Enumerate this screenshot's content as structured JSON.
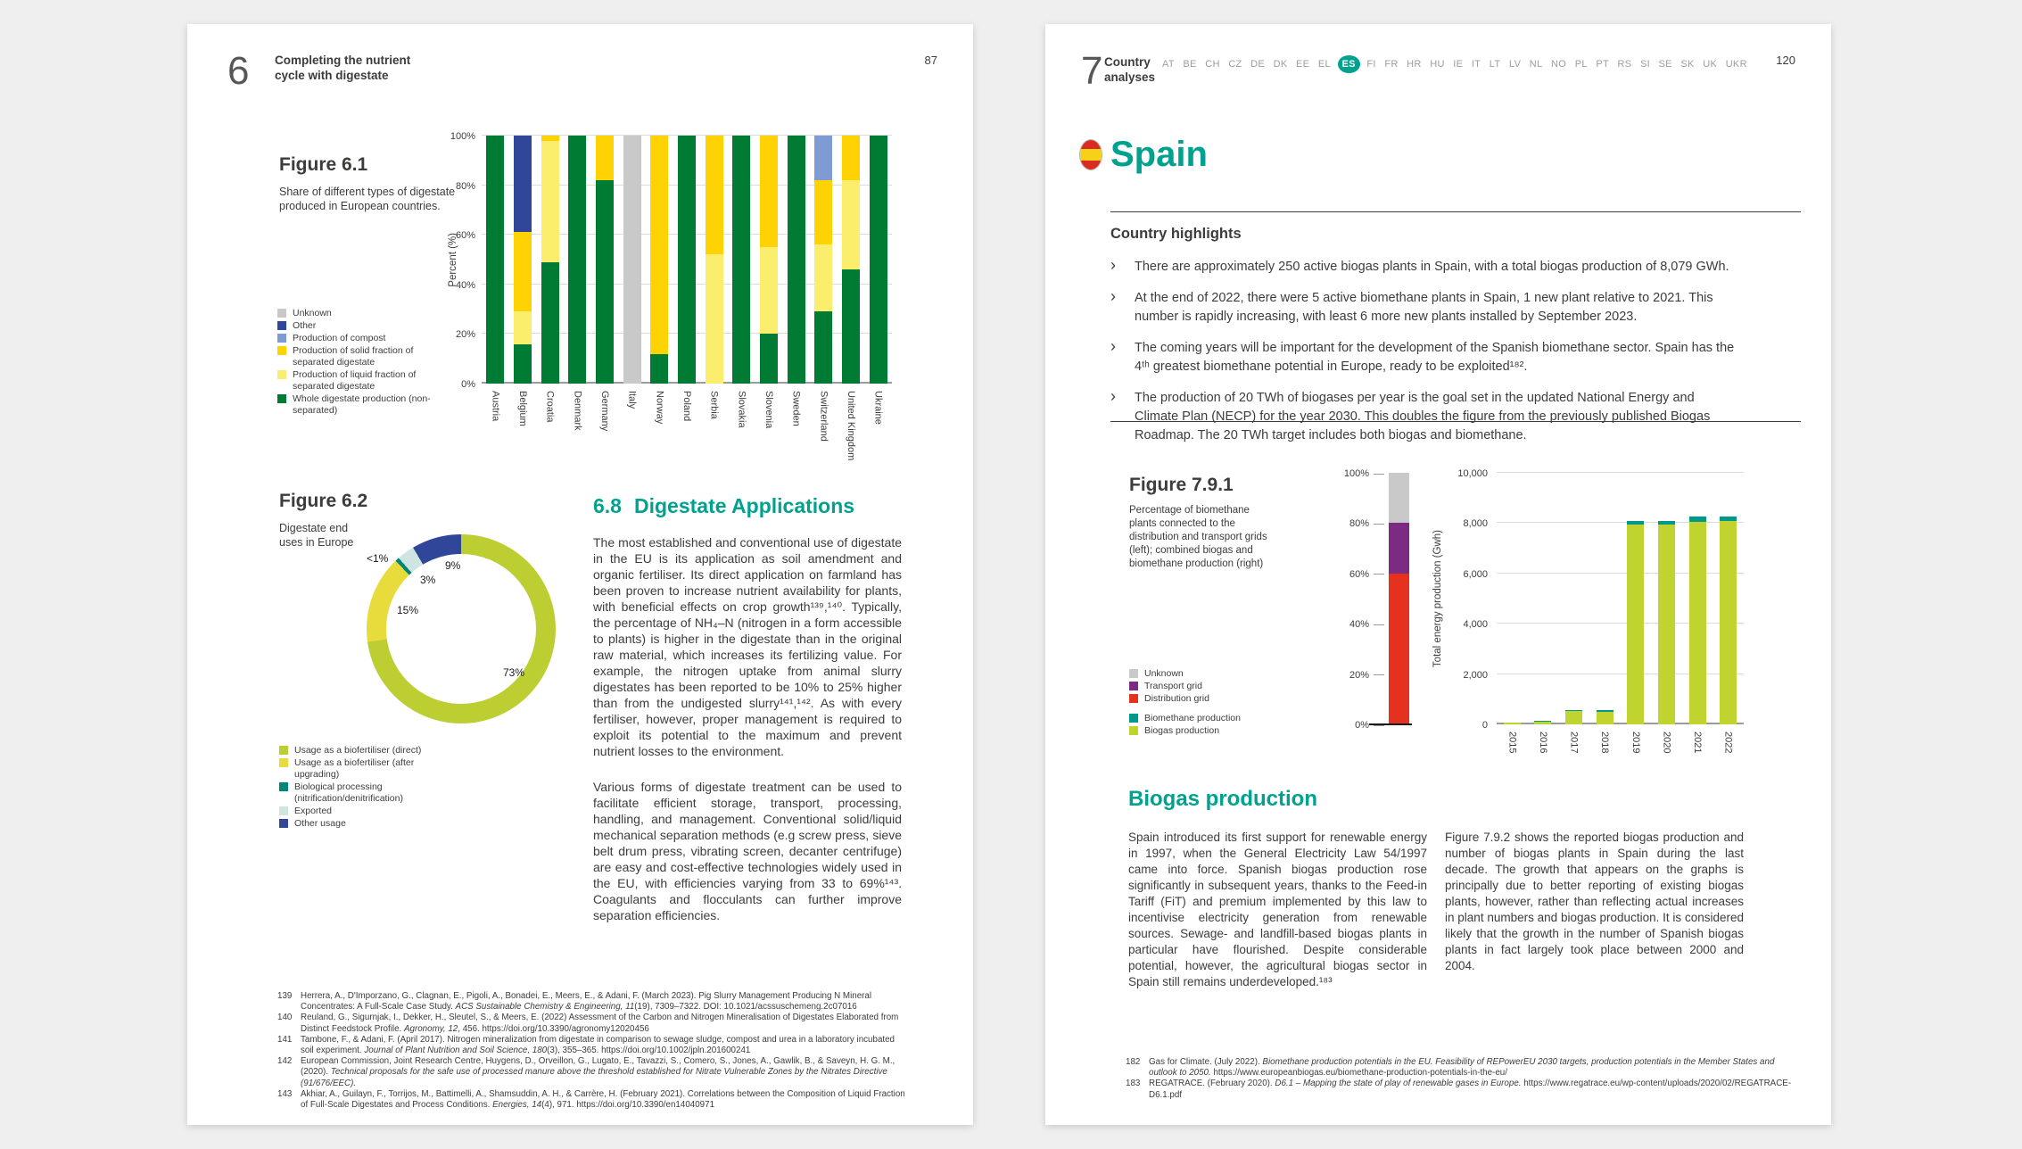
{
  "canvas": {
    "background": "#EFEFEF",
    "page_background": "#FFFFFF"
  },
  "accent": {
    "heading_teal": "#00A28F",
    "body_text": "#3C3C3B",
    "muted_gray": "#9D9D9C"
  },
  "left_page": {
    "chapter_num": "6",
    "chapter_title": "Completing the nutrient\ncycle with digestate",
    "page_num": "87",
    "fig61": {
      "title": "Figure 6.1",
      "caption": "Share of different types of digestate\nproduced in European countries.",
      "legend": [
        {
          "label": "Unknown",
          "color": "#C9C9C9"
        },
        {
          "label": "Other",
          "color": "#2F4699"
        },
        {
          "label": "Production of compost",
          "color": "#7E9BD3"
        },
        {
          "label": "Production of solid fraction of separated digestate",
          "color": "#FFD203"
        },
        {
          "label": "Production of liquid fraction of separated digestate",
          "color": "#FCEE6D"
        },
        {
          "label": "Whole digestate production (non-separated)",
          "color": "#007B33"
        }
      ]
    },
    "fig62": {
      "title": "Figure 6.2",
      "caption": "Digestate end\nuses in Europe",
      "legend": [
        {
          "label": "Usage as a biofertiliser (direct)",
          "color": "#BCCE32"
        },
        {
          "label": "Usage as a biofertiliser (after upgrading)",
          "color": "#E7DC3B"
        },
        {
          "label": "Biological processing (nitrification/denitrification)",
          "color": "#00857A"
        },
        {
          "label": "Exported",
          "color": "#CFE5E1"
        },
        {
          "label": "Other usage",
          "color": "#2F4699"
        }
      ]
    },
    "section": {
      "number": "6.8",
      "heading": "Digestate Applications",
      "para1": "The most established and conventional use of digestate in the EU is its application as soil amendment and organic fertiliser. Its direct application on farmland has been proven to increase nutrient availability for plants, with beneficial effects on crop growth¹³⁹,¹⁴⁰. Typically, the percentage of NH₄–N (nitrogen in a form accessible to plants) is higher in the digestate than in the original raw material, which increases its fertilizing value. For example, the nitrogen uptake from animal slurry digestates has been reported to be 10% to 25% higher than from the undigested slurry¹⁴¹,¹⁴². As with every fertiliser, however, proper management is required to exploit its potential to the maximum and prevent nutrient losses to the environment.",
      "para2": "Various forms of digestate treatment can be used to facilitate efficient storage, transport, processing, handling, and management. Conventional solid/liquid mechanical separation methods (e.g screw press, sieve belt drum press, vibrating screen, decanter centrifuge) are easy and cost-effective technologies widely used in the EU, with efficiencies varying from 33 to 69%¹⁴³. Coagulants and flocculants can further improve separation efficiencies."
    },
    "footnotes": [
      {
        "num": "139",
        "runs": [
          {
            "text": "Herrera, A., D'Imporzano, G., Clagnan, E., Pigoli, A., Bonadei, E., Meers, E., & Adani, F. (March 2023). Pig Slurry Management Producing N Mineral Concentrates: A Full-Scale Case Study. "
          },
          {
            "text": "ACS Sustainable Chemistry & Engineering, 11",
            "italic": true
          },
          {
            "text": "(19), 7309–7322. DOI: 10.1021/acssuschemeng.2c07016"
          }
        ]
      },
      {
        "num": "140",
        "runs": [
          {
            "text": "Reuland, G., Sigurnjak, I., Dekker, H., Sleutel, S., & Meers, E. (2022) Assessment of the Carbon and Nitrogen Mineralisation of Digestates Elaborated from Distinct Feedstock Profile. "
          },
          {
            "text": "Agronomy, 12",
            "italic": true
          },
          {
            "text": ", 456. https://doi.org/10.3390/agronomy12020456"
          }
        ]
      },
      {
        "num": "141",
        "runs": [
          {
            "text": "Tambone, F., & Adani, F. (April 2017). Nitrogen mineralization from digestate in comparison to sewage sludge, compost and urea in a laboratory incubated soil experiment. "
          },
          {
            "text": "Journal of Plant Nutrition and Soil Science, 180",
            "italic": true
          },
          {
            "text": "(3), 355–365. https://doi.org/10.1002/jpln.201600241"
          }
        ]
      },
      {
        "num": "142",
        "runs": [
          {
            "text": "European Commission, Joint Research Centre, Huygens, D., Orveillon, G., Lugato, E., Tavazzi, S., Comero, S., Jones, A., Gawlik, B., & Saveyn, H. G. M., (2020). "
          },
          {
            "text": "Technical proposals for the safe use of processed manure above the threshold established for Nitrate Vulnerable Zones by the Nitrates Directive (91/676/EEC).",
            "italic": true
          }
        ]
      },
      {
        "num": "143",
        "runs": [
          {
            "text": "Akhiar, A., Guilayn, F., Torrijos, M., Battimelli, A., Shamsuddin, A. H., & Carrère, H. (February 2021). Correlations between the Composition of Liquid Fraction of Full-Scale Digestates and Process Conditions. "
          },
          {
            "text": "Energies, 14",
            "italic": true
          },
          {
            "text": "(4), 971. https://doi.org/10.3390/en14040971"
          }
        ]
      }
    ]
  },
  "right_page": {
    "chapter_num": "7",
    "chapter_title": "Country\nanalyses",
    "page_num": "120",
    "country_codes": [
      "AT",
      "BE",
      "CH",
      "CZ",
      "DE",
      "DK",
      "EE",
      "EL",
      "ES",
      "FI",
      "FR",
      "HR",
      "HU",
      "IE",
      "IT",
      "LT",
      "LV",
      "NL",
      "NO",
      "PL",
      "PT",
      "RS",
      "SI",
      "SE",
      "SK",
      "UK",
      "UKR"
    ],
    "active_code": "ES",
    "country": {
      "name": "Spain"
    },
    "highlights": {
      "heading": "Country highlights",
      "bullets": [
        "There are approximately 250 active biogas plants in Spain, with a total biogas production of 8,079 GWh.",
        "At the end of 2022, there were 5 active biomethane plants in Spain, 1 new plant relative to 2021. This number is rapidly increasing, with least 6 more new plants installed by September 2023.",
        "The coming years will be important for the development of the Spanish biomethane sector. Spain has the 4ᵗʰ greatest biomethane potential in Europe, ready to be exploited¹⁸².",
        "The production of 20 TWh of biogases per year is the goal set in the updated National Energy and Climate Plan (NECP) for the year 2030. This doubles the figure from the previously published Biogas Roadmap. The 20 TWh target includes both biogas and biomethane."
      ]
    },
    "fig791": {
      "title": "Figure 7.9.1",
      "caption": "Percentage of biomethane\nplants connected to the\ndistribution and transport grids\n(left); combined biogas and\nbiomethane production (right)",
      "legend_grid": [
        {
          "label": "Unknown",
          "color": "#C9C9C9"
        },
        {
          "label": "Transport grid",
          "color": "#7C2B83"
        },
        {
          "label": "Distribution grid",
          "color": "#E5321E"
        }
      ],
      "legend_prod": [
        {
          "label": "Biomethane production",
          "color": "#00988B"
        },
        {
          "label": "Biogas production",
          "color": "#C0D32E"
        }
      ]
    },
    "biogas_section": {
      "heading": "Biogas production",
      "col1": "Spain introduced its first support for renewable energy in 1997, when the General Electricity Law 54/1997 came into force. Spanish biogas production rose significantly in subsequent years, thanks to the Feed-in Tariff (FiT) and premium implemented by this law to incentivise electricity generation from renewable sources. Sewage- and landfill-based biogas plants in particular have flourished. Despite considerable potential, however, the agricultural biogas sector in Spain still remains underdeveloped.¹⁸³",
      "col2": "Figure 7.9.2 shows the reported biogas production and number of biogas plants in Spain during the last decade. The growth that appears on the graphs is principally due to better reporting of existing biogas plants, however, rather than reflecting actual increases in plant numbers and biogas production. It is considered likely that the growth in the number of Spanish biogas plants in fact largely took place between 2000 and 2004."
    },
    "footnotes": [
      {
        "num": "182",
        "runs": [
          {
            "text": "Gas for Climate. (July 2022). "
          },
          {
            "text": "Biomethane production potentials in the EU. Feasibility of REPowerEU 2030 targets, production potentials in the Member States and outlook to 2050.",
            "italic": true
          },
          {
            "text": " https://www.europeanbiogas.eu/biomethane-production-potentials-in-the-eu/"
          }
        ]
      },
      {
        "num": "183",
        "runs": [
          {
            "text": "REGATRACE. (February 2020). "
          },
          {
            "text": "D6.1 – Mapping the state of play of renewable gases in Europe.",
            "italic": true
          },
          {
            "text": " https://www.regatrace.eu/wp-content/uploads/2020/02/REGATRACE-D6.1.pdf"
          }
        ]
      }
    ]
  },
  "chart_data": [
    {
      "id": "fig-6-1",
      "type": "bar",
      "stacked": true,
      "title": "Figure 6.1",
      "ylabel": "Percent (%)",
      "ylim": [
        0,
        100
      ],
      "yticks": [
        "0%",
        "20%",
        "40%",
        "60%",
        "80%",
        "100%"
      ],
      "grid": true,
      "legend_position": "left",
      "categories": [
        "Austria",
        "Belgium",
        "Croatia",
        "Denmark",
        "Germany",
        "Italy",
        "Norway",
        "Poland",
        "Serbia",
        "Slovakia",
        "Slovenia",
        "Sweden",
        "Switzerland",
        "United Kingdom",
        "Ukraine"
      ],
      "series": [
        {
          "name": "Whole digestate production (non-separated)",
          "color": "#007B33",
          "values": [
            100,
            16,
            49,
            100,
            82,
            0,
            12,
            100,
            0,
            100,
            20,
            100,
            29,
            46,
            100
          ]
        },
        {
          "name": "Production of liquid fraction of separated digestate",
          "color": "#FCEE6D",
          "values": [
            0,
            13,
            49,
            0,
            0,
            0,
            0,
            0,
            52,
            0,
            35,
            0,
            27,
            36,
            0
          ]
        },
        {
          "name": "Production of solid fraction of separated digestate",
          "color": "#FFD203",
          "values": [
            0,
            32,
            2,
            0,
            18,
            0,
            88,
            0,
            48,
            0,
            45,
            0,
            26,
            18,
            0
          ]
        },
        {
          "name": "Production of compost",
          "color": "#7E9BD3",
          "values": [
            0,
            0,
            0,
            0,
            0,
            0,
            0,
            0,
            0,
            0,
            0,
            0,
            18,
            0,
            0
          ]
        },
        {
          "name": "Other",
          "color": "#2F4699",
          "values": [
            0,
            39,
            0,
            0,
            0,
            0,
            0,
            0,
            0,
            0,
            0,
            0,
            0,
            0,
            0
          ]
        },
        {
          "name": "Unknown",
          "color": "#C9C9C9",
          "values": [
            0,
            0,
            0,
            0,
            0,
            100,
            0,
            0,
            0,
            0,
            0,
            0,
            0,
            0,
            0
          ]
        }
      ]
    },
    {
      "id": "fig-6-2",
      "type": "pie",
      "title": "Digestate end uses in Europe",
      "labels": [
        "Usage as a biofertiliser (direct)",
        "Usage as a biofertiliser (after upgrading)",
        "Biological processing (nitrification/denitrification)",
        "Exported",
        "Other usage"
      ],
      "display_values": [
        "73%",
        "15%",
        "<1%",
        "3%",
        "9%"
      ],
      "values": [
        72.8,
        15,
        0.7,
        3,
        8.5
      ],
      "colors": [
        "#BCCE32",
        "#E7DC3B",
        "#00857A",
        "#CFE5E1",
        "#2F4699"
      ]
    },
    {
      "id": "fig-7-9-1-left",
      "type": "bar",
      "stacked": true,
      "ylim": [
        0,
        100
      ],
      "yticks": [
        "0%",
        "20%",
        "40%",
        "60%",
        "80%",
        "100%"
      ],
      "categories": [
        "Biomethane plants"
      ],
      "segments": [
        {
          "name": "Distribution grid",
          "color": "#E5321E",
          "value": 60
        },
        {
          "name": "Transport grid",
          "color": "#7C2B83",
          "value": 20
        },
        {
          "name": "Unknown",
          "color": "#C9C9C9",
          "value": 20
        }
      ]
    },
    {
      "id": "fig-7-9-1-right",
      "type": "bar",
      "stacked": true,
      "ylabel": "Total energy production (Gwh)",
      "ylim": [
        0,
        10000
      ],
      "yticks": [
        "0",
        "2,000",
        "4,000",
        "6,000",
        "8,000",
        "10,000"
      ],
      "grid": true,
      "categories": [
        "2015",
        "2016",
        "2017",
        "2018",
        "2019",
        "2020",
        "2021",
        "2022"
      ],
      "series": [
        {
          "name": "Biogas production",
          "color": "#C0D32E",
          "values": [
            80,
            90,
            520,
            510,
            7950,
            7950,
            8050,
            8079
          ]
        },
        {
          "name": "Biomethane production",
          "color": "#00988B",
          "values": [
            0,
            45,
            60,
            60,
            130,
            130,
            230,
            200
          ]
        }
      ]
    }
  ]
}
